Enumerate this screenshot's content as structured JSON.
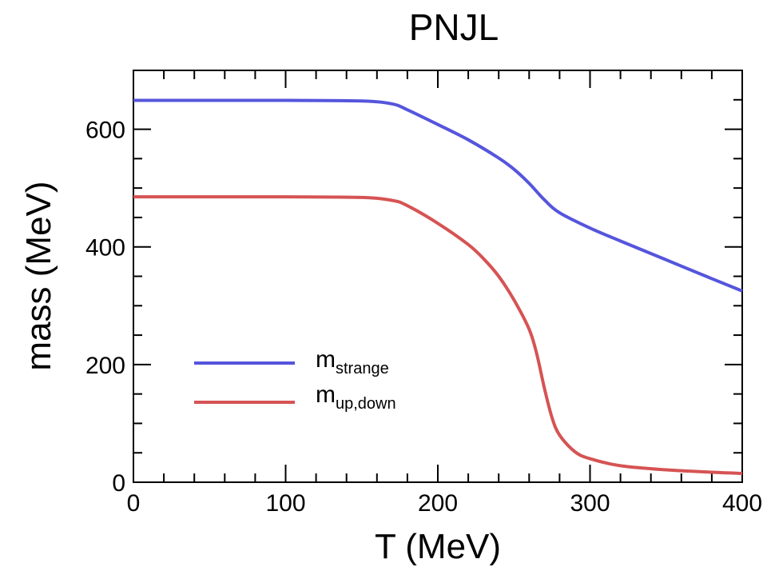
{
  "chart_data": {
    "type": "line",
    "title": "PNJL",
    "xlabel": "T (MeV)",
    "ylabel": "mass (MeV)",
    "xlim": [
      0,
      400
    ],
    "ylim": [
      0,
      700
    ],
    "x_ticks": [
      0,
      100,
      200,
      300,
      400
    ],
    "y_ticks": [
      0,
      200,
      400,
      600
    ],
    "x_minor_step": 20,
    "y_minor_step": 50,
    "grid": false,
    "legend_position": "lower-left",
    "series": [
      {
        "name": "m",
        "name_sub": "strange",
        "color": "#5555dd",
        "points": [
          [
            0,
            649
          ],
          [
            50,
            649
          ],
          [
            100,
            649
          ],
          [
            150,
            648
          ],
          [
            170,
            643
          ],
          [
            180,
            633
          ],
          [
            200,
            608
          ],
          [
            220,
            582
          ],
          [
            240,
            551
          ],
          [
            250,
            532
          ],
          [
            260,
            508
          ],
          [
            270,
            480
          ],
          [
            280,
            458
          ],
          [
            300,
            432
          ],
          [
            320,
            410
          ],
          [
            350,
            378
          ],
          [
            380,
            346
          ],
          [
            400,
            325
          ]
        ]
      },
      {
        "name": "m",
        "name_sub": "up,down",
        "color": "#d65353",
        "points": [
          [
            0,
            485
          ],
          [
            50,
            485
          ],
          [
            100,
            485
          ],
          [
            150,
            484
          ],
          [
            170,
            479
          ],
          [
            180,
            470
          ],
          [
            200,
            440
          ],
          [
            220,
            404
          ],
          [
            230,
            380
          ],
          [
            240,
            350
          ],
          [
            250,
            310
          ],
          [
            260,
            260
          ],
          [
            265,
            218
          ],
          [
            270,
            160
          ],
          [
            275,
            110
          ],
          [
            280,
            80
          ],
          [
            290,
            52
          ],
          [
            300,
            40
          ],
          [
            320,
            28
          ],
          [
            350,
            21
          ],
          [
            380,
            17
          ],
          [
            400,
            15
          ]
        ]
      }
    ]
  }
}
